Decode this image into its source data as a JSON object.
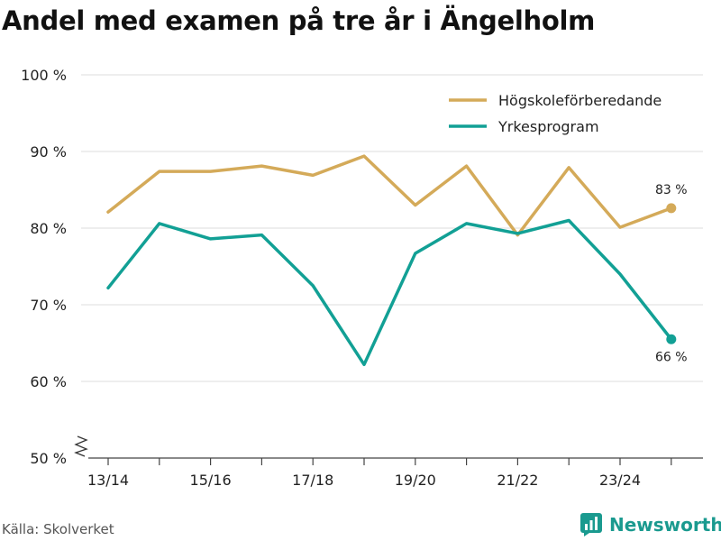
{
  "chart_data": {
    "type": "line",
    "title": "Andel med examen på tre år i Ängelholm",
    "x": [
      "13/14",
      "14/15",
      "15/16",
      "16/17",
      "17/18",
      "18/19",
      "19/20",
      "20/21",
      "21/22",
      "22/23",
      "23/24",
      "24/25"
    ],
    "x_tick_labels": [
      "13/14",
      "15/16",
      "17/18",
      "19/20",
      "21/22",
      "23/24"
    ],
    "y_ticks": [
      "50 %",
      "60 %",
      "70 %",
      "80 %",
      "90 %",
      "100 %"
    ],
    "ylim": [
      50,
      100
    ],
    "grid": "horizontal",
    "legend_position": "top-right",
    "series": [
      {
        "name": "Högskoleförberedande",
        "color": "#d4aa59",
        "values": [
          82.1,
          87.4,
          87.4,
          88.1,
          86.9,
          89.4,
          83.0,
          88.1,
          79.1,
          87.9,
          80.1,
          82.6
        ],
        "end_label": "83 %"
      },
      {
        "name": "Yrkesprogram",
        "color": "#12a095",
        "values": [
          72.2,
          80.6,
          78.6,
          79.1,
          72.5,
          62.2,
          76.7,
          80.6,
          79.3,
          81.0,
          74.0,
          65.5
        ],
        "end_label": "66 %"
      }
    ]
  },
  "source": "Källa: Skolverket",
  "brand": {
    "name": "Newsworthy",
    "icon": "newsworthy-logo-icon"
  }
}
